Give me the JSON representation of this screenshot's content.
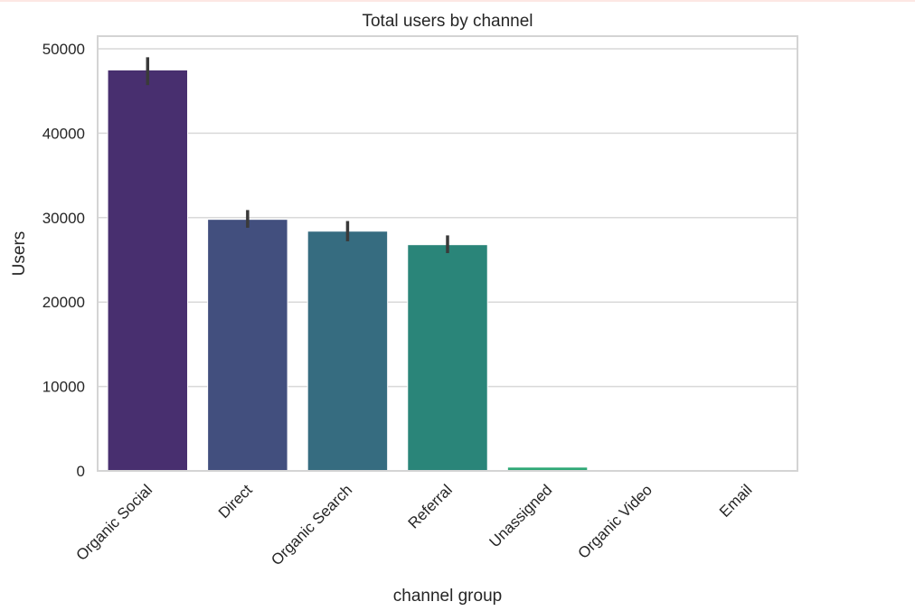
{
  "chart_data": {
    "type": "bar",
    "title": "Total users by channel",
    "xlabel": "channel group",
    "ylabel": "Users",
    "categories": [
      "Organic Social",
      "Direct",
      "Organic Search",
      "Referral",
      "Unassigned",
      "Organic Video",
      "Email"
    ],
    "values": [
      47500,
      29800,
      28400,
      26800,
      450,
      20,
      10
    ],
    "error_bars": [
      [
        45700,
        49000
      ],
      [
        28800,
        30900
      ],
      [
        27200,
        29600
      ],
      [
        25800,
        27900
      ],
      null,
      null,
      null
    ],
    "colors": [
      "#482f6f",
      "#424f7e",
      "#366c80",
      "#2a8579",
      "#2ea876",
      "#2ea876",
      "#2ea876"
    ],
    "ylim": [
      0,
      51500
    ],
    "yticks": [
      0,
      10000,
      20000,
      30000,
      40000,
      50000
    ],
    "ytick_labels": [
      "0",
      "10000",
      "20000",
      "30000",
      "40000",
      "50000"
    ],
    "grid": true,
    "legend": "none"
  }
}
